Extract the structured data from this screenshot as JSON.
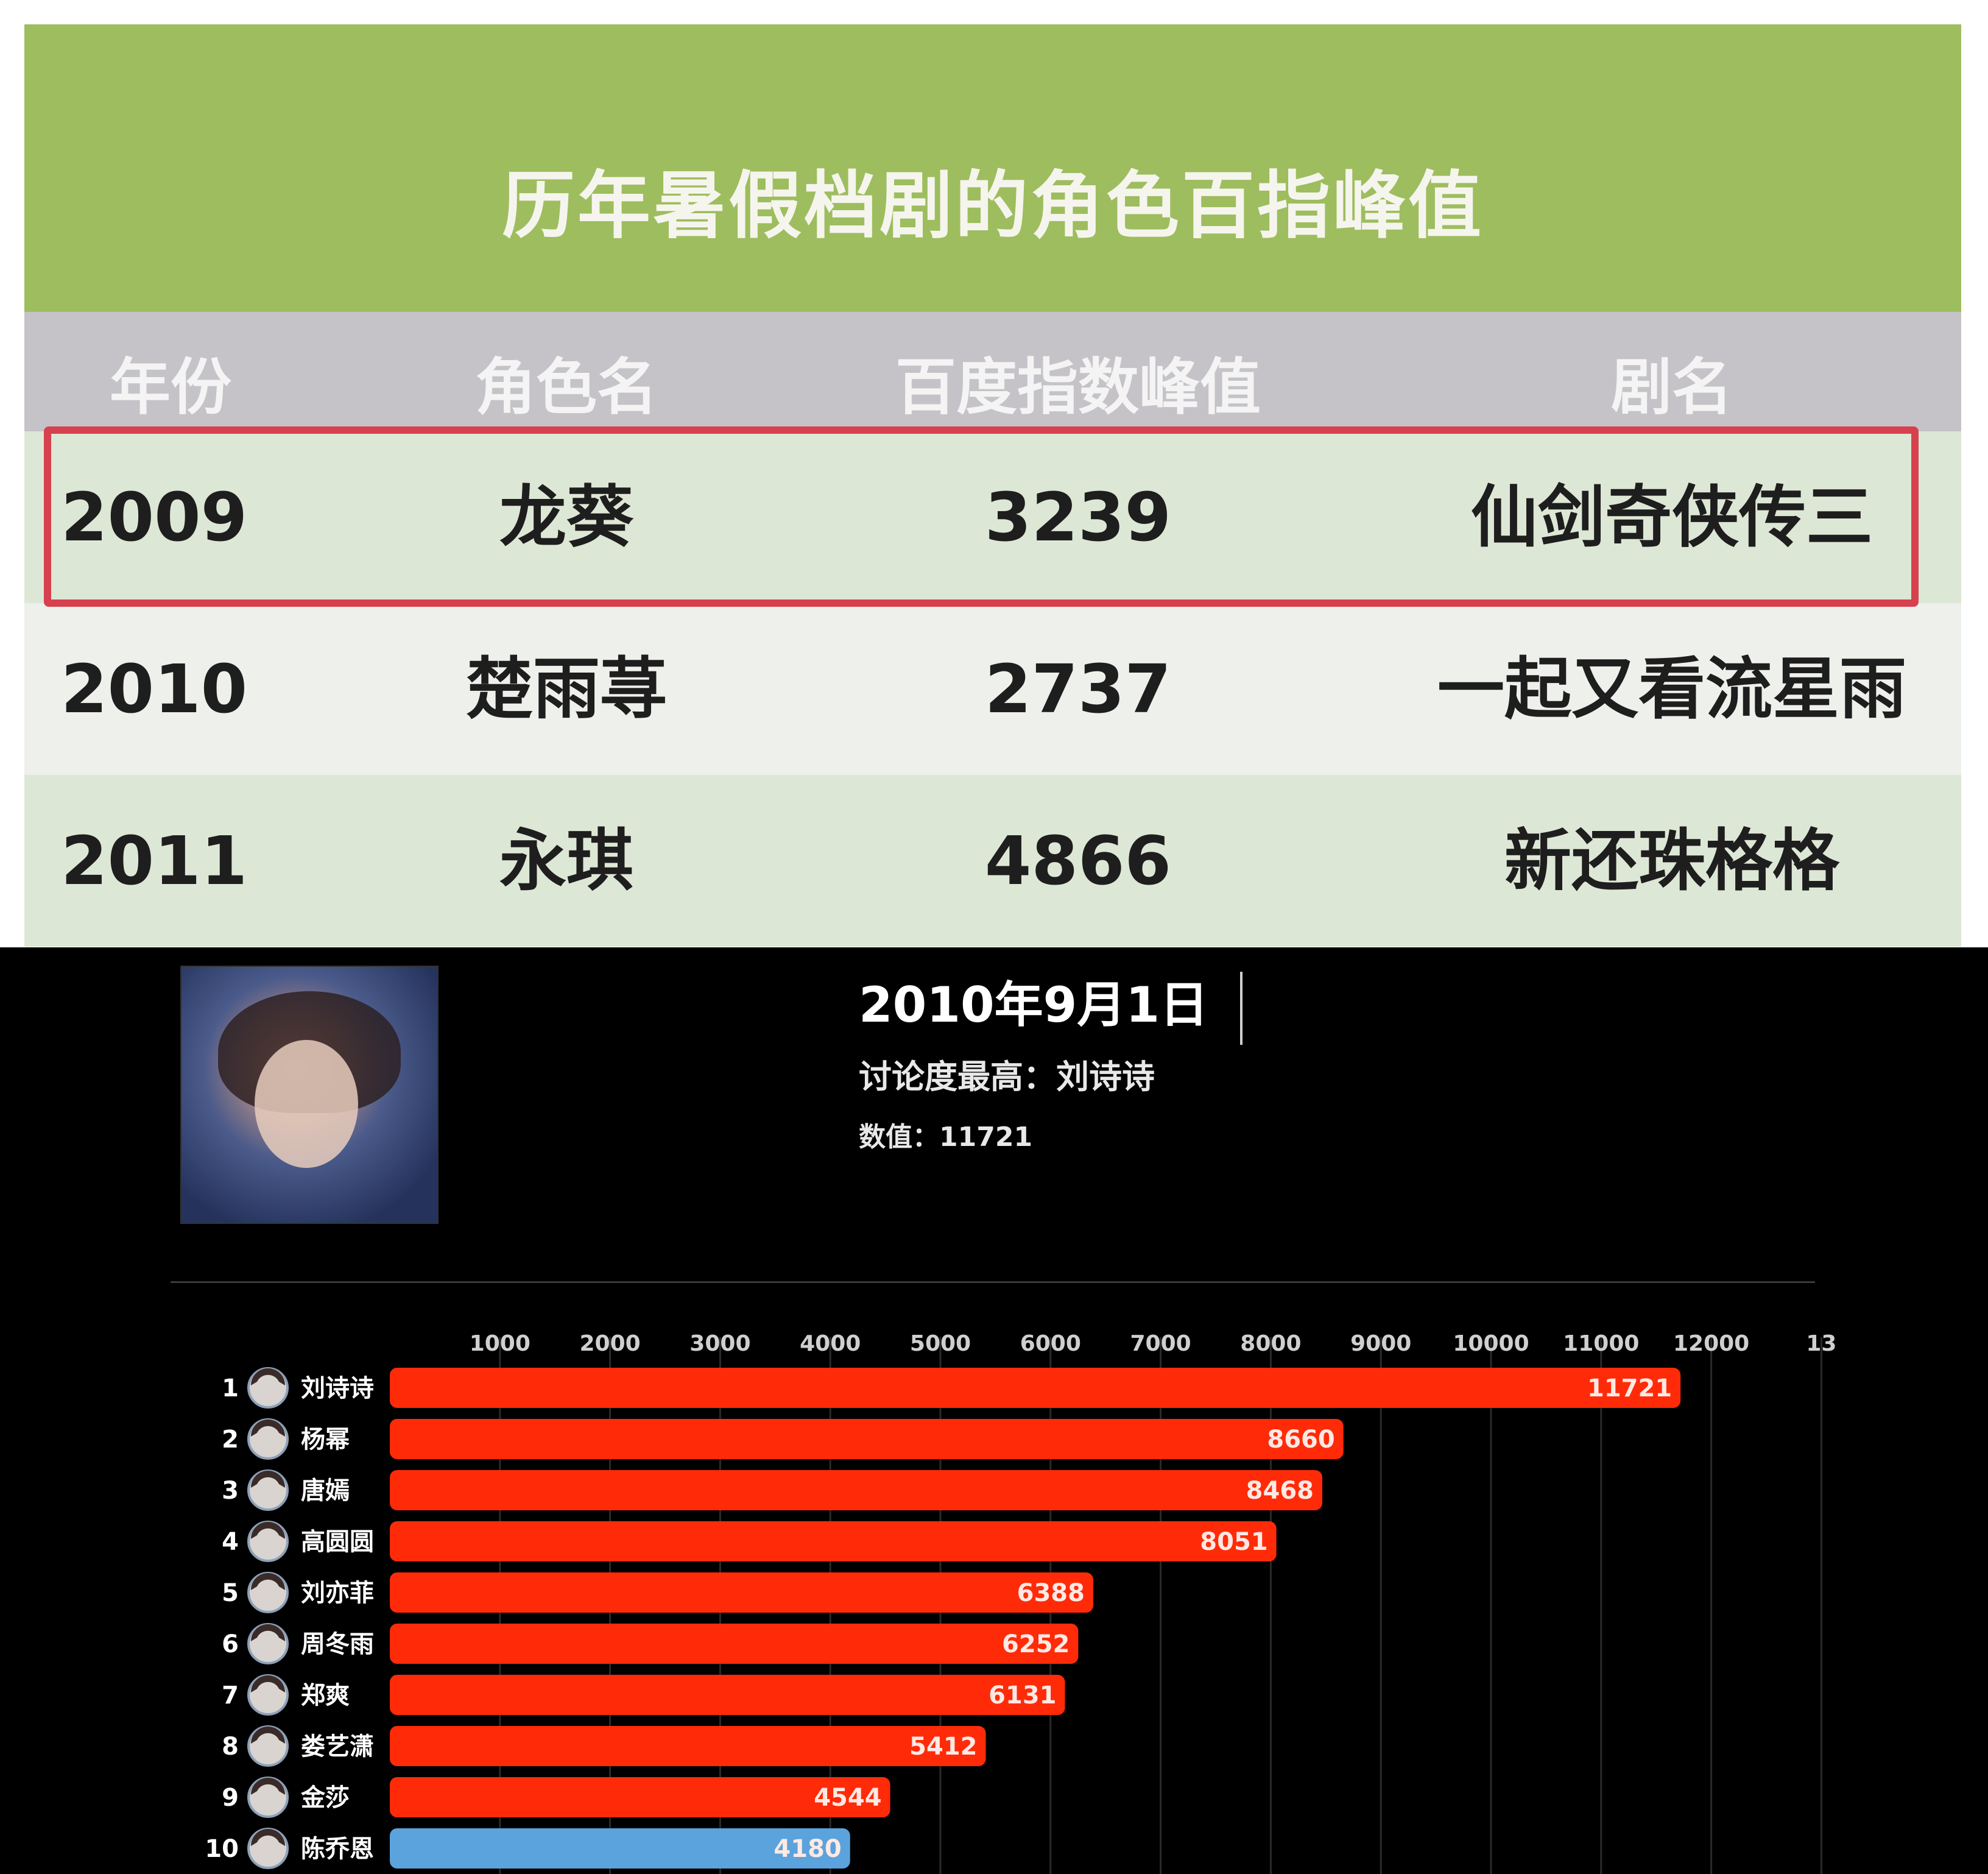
{
  "table": {
    "title": "历年暑假档剧的角色百指峰值",
    "headers": {
      "year": "年份",
      "role": "角色名",
      "value": "百度指数峰值",
      "show": "剧名"
    },
    "rows": [
      {
        "year": "2009",
        "role": "龙葵",
        "value": "3239",
        "show": "仙剑奇侠传三",
        "highlighted": true
      },
      {
        "year": "2010",
        "role": "楚雨荨",
        "value": "2737",
        "show": "一起又看流星雨",
        "highlighted": false
      },
      {
        "year": "2011",
        "role": "永琪",
        "value": "4866",
        "show": "新还珠格格",
        "highlighted": false
      }
    ],
    "colors": {
      "title_bg": "#9ebd5e",
      "header_bg": "#c5c3c7",
      "row_alt_a": "#dde7d5",
      "row_alt_b": "#eef0eb",
      "highlight": "#d7404e"
    }
  },
  "race": {
    "date": "2010年9月1日",
    "top_discuss": "讨论度最高：刘诗诗",
    "top_value": "数值：11721",
    "portrait_icon": "portrait-photo"
  },
  "chart_data": {
    "type": "bar",
    "orientation": "horizontal",
    "x_ticks": [
      "1000",
      "2000",
      "3000",
      "4000",
      "5000",
      "6000",
      "7000",
      "8000",
      "9000",
      "10000",
      "11000",
      "12000",
      "13"
    ],
    "categories": [
      "刘诗诗",
      "杨幂",
      "唐嫣",
      "高圆圆",
      "刘亦菲",
      "周冬雨",
      "郑爽",
      "娄艺潇",
      "金莎",
      "陈乔恩"
    ],
    "ranks": [
      "1",
      "2",
      "3",
      "4",
      "5",
      "6",
      "7",
      "8",
      "9",
      "10"
    ],
    "values": [
      11721,
      8660,
      8468,
      8051,
      6388,
      6252,
      6131,
      5412,
      4544,
      4180
    ],
    "bar_colors": [
      "#ff2b08",
      "#ff2b08",
      "#ff2b08",
      "#ff2b08",
      "#ff2b08",
      "#ff2b08",
      "#ff2b08",
      "#ff2b08",
      "#ff2b08",
      "#5ba3dc"
    ],
    "xlim": [
      0,
      13000
    ],
    "grid": true
  }
}
